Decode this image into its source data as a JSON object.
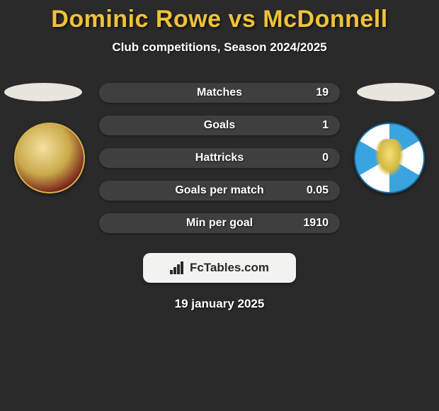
{
  "title": {
    "player1": "Dominic Rowe",
    "vs": "vs",
    "player2": "McDonnell",
    "color": "#f0c23a",
    "fontsize": 34
  },
  "subtitle": {
    "text": "Club competitions, Season 2024/2025",
    "fontsize": 17
  },
  "ellipse_color": "#e8e4de",
  "stats": {
    "row_bg": "#3f3f3f",
    "label_fontsize": 16,
    "value_fontsize": 16,
    "rows": [
      {
        "label": "Matches",
        "right_value": "19"
      },
      {
        "label": "Goals",
        "right_value": "1"
      },
      {
        "label": "Hattricks",
        "right_value": "0"
      },
      {
        "label": "Goals per match",
        "right_value": "0.05"
      },
      {
        "label": "Min per goal",
        "right_value": "1910"
      }
    ]
  },
  "branding": {
    "bg": "#f2f2f0",
    "text": "FcTables.com",
    "fontsize": 17
  },
  "date": {
    "text": "19 january 2025",
    "fontsize": 17
  },
  "colors": {
    "background": "#2a2a2a",
    "text": "#ffffff"
  }
}
